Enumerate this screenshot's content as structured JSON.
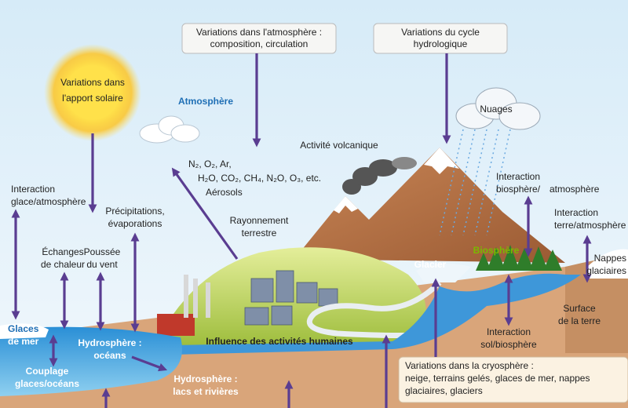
{
  "atmosphere_box": [
    "Variations dans l'atmosphère :",
    "composition, circulation"
  ],
  "hydro_box": [
    "Variations du cycle",
    "hydrologique"
  ],
  "solar": [
    "Variations dans",
    "l'apport solaire"
  ],
  "atmosphere": "Atmosphère",
  "clouds": "Nuages",
  "volcanic": "Activité volcanique",
  "gases": [
    "N₂, O₂, Ar,",
    "H₂O, CO₂, CH₄, N₂O, O₃, etc.",
    "Aérosols"
  ],
  "ice_atmosphere": [
    "Interaction",
    "glace/atmosphère"
  ],
  "precipitation": [
    "Précipitations,",
    "évaporations"
  ],
  "heat": [
    "Échanges",
    "de chaleur"
  ],
  "wind": [
    "Poussée",
    "du vent"
  ],
  "radiation": [
    "Rayonnement",
    "terrestre"
  ],
  "bio_atm": [
    "Interaction",
    "biosphère/",
    "atmosphère"
  ],
  "land_atm": [
    "Interaction",
    "terre/atmosphère"
  ],
  "ice_sheets": [
    "Nappes",
    "glaciaires"
  ],
  "glacier": "Glacier",
  "biosphere": "Biosphère",
  "land_surface": [
    "Surface",
    "de la terre"
  ],
  "soil_bio": [
    "Interaction",
    "sol/biosphère"
  ],
  "sea_ice": [
    "Glaces",
    "de mer"
  ],
  "oceans": [
    "Hydrosphère :",
    "océans"
  ],
  "coupling": [
    "Couplage",
    "glaces/océans"
  ],
  "lakes": [
    "Hydrosphère :",
    "lacs et rivières"
  ],
  "human": "Influence des activités humaines",
  "cryosphere": [
    "Variations dans la cryosphère :",
    "neige, terrains gelés, glaces de mer, nappes",
    "glaciaires, glaciers"
  ]
}
